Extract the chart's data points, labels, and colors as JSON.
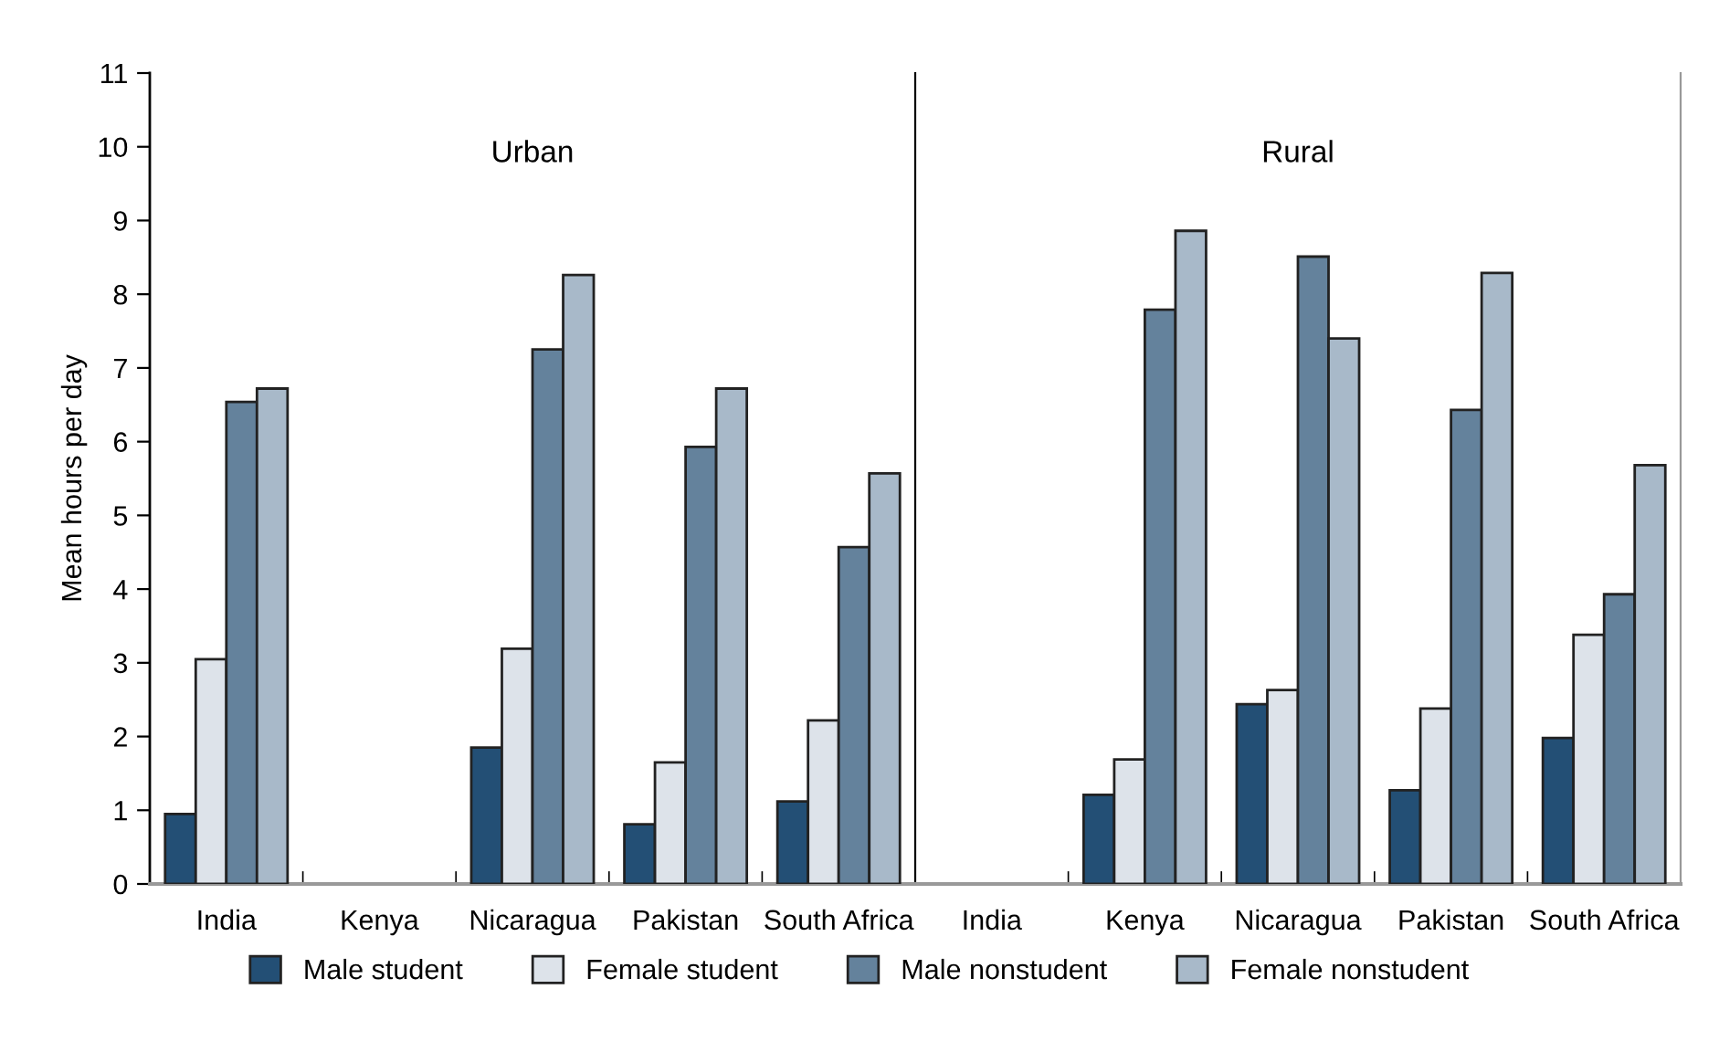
{
  "chart_data": [
    {
      "type": "bar",
      "title": "Urban",
      "ylabel": "Mean hours per day",
      "categories": [
        "India",
        "Kenya",
        "Nicaragua",
        "Pakistan",
        "South Africa"
      ],
      "ylim": [
        0,
        11
      ],
      "yticks": [
        0,
        1,
        2,
        3,
        4,
        5,
        6,
        7,
        8,
        9,
        10,
        11
      ],
      "legend": "bottom",
      "series": [
        {
          "name": "Male student",
          "color": "#234f75",
          "values": [
            0.95,
            null,
            1.85,
            0.81,
            1.12
          ]
        },
        {
          "name": "Female student",
          "color": "#dde3ea",
          "values": [
            3.05,
            null,
            3.19,
            1.65,
            2.22
          ]
        },
        {
          "name": "Male nonstudent",
          "color": "#64829c",
          "values": [
            6.54,
            null,
            7.25,
            5.93,
            4.57
          ]
        },
        {
          "name": "Female nonstudent",
          "color": "#a8b9c9",
          "values": [
            6.72,
            null,
            8.26,
            6.72,
            5.57
          ]
        }
      ]
    },
    {
      "type": "bar",
      "title": "Rural",
      "categories": [
        "India",
        "Kenya",
        "Nicaragua",
        "Pakistan",
        "South Africa"
      ],
      "ylim": [
        0,
        11
      ],
      "tick_labels": "x",
      "series": [
        {
          "color": "#234f75",
          "values": [
            null,
            1.21,
            2.44,
            1.27,
            1.98
          ]
        },
        {
          "color": "#dde3ea",
          "values": [
            null,
            1.69,
            2.63,
            2.38,
            3.38
          ]
        },
        {
          "color": "#64829c",
          "values": [
            null,
            7.79,
            8.51,
            6.43,
            3.93
          ]
        },
        {
          "color": "#a8b9c9",
          "values": [
            null,
            8.86,
            7.4,
            8.29,
            5.68
          ]
        }
      ]
    }
  ]
}
